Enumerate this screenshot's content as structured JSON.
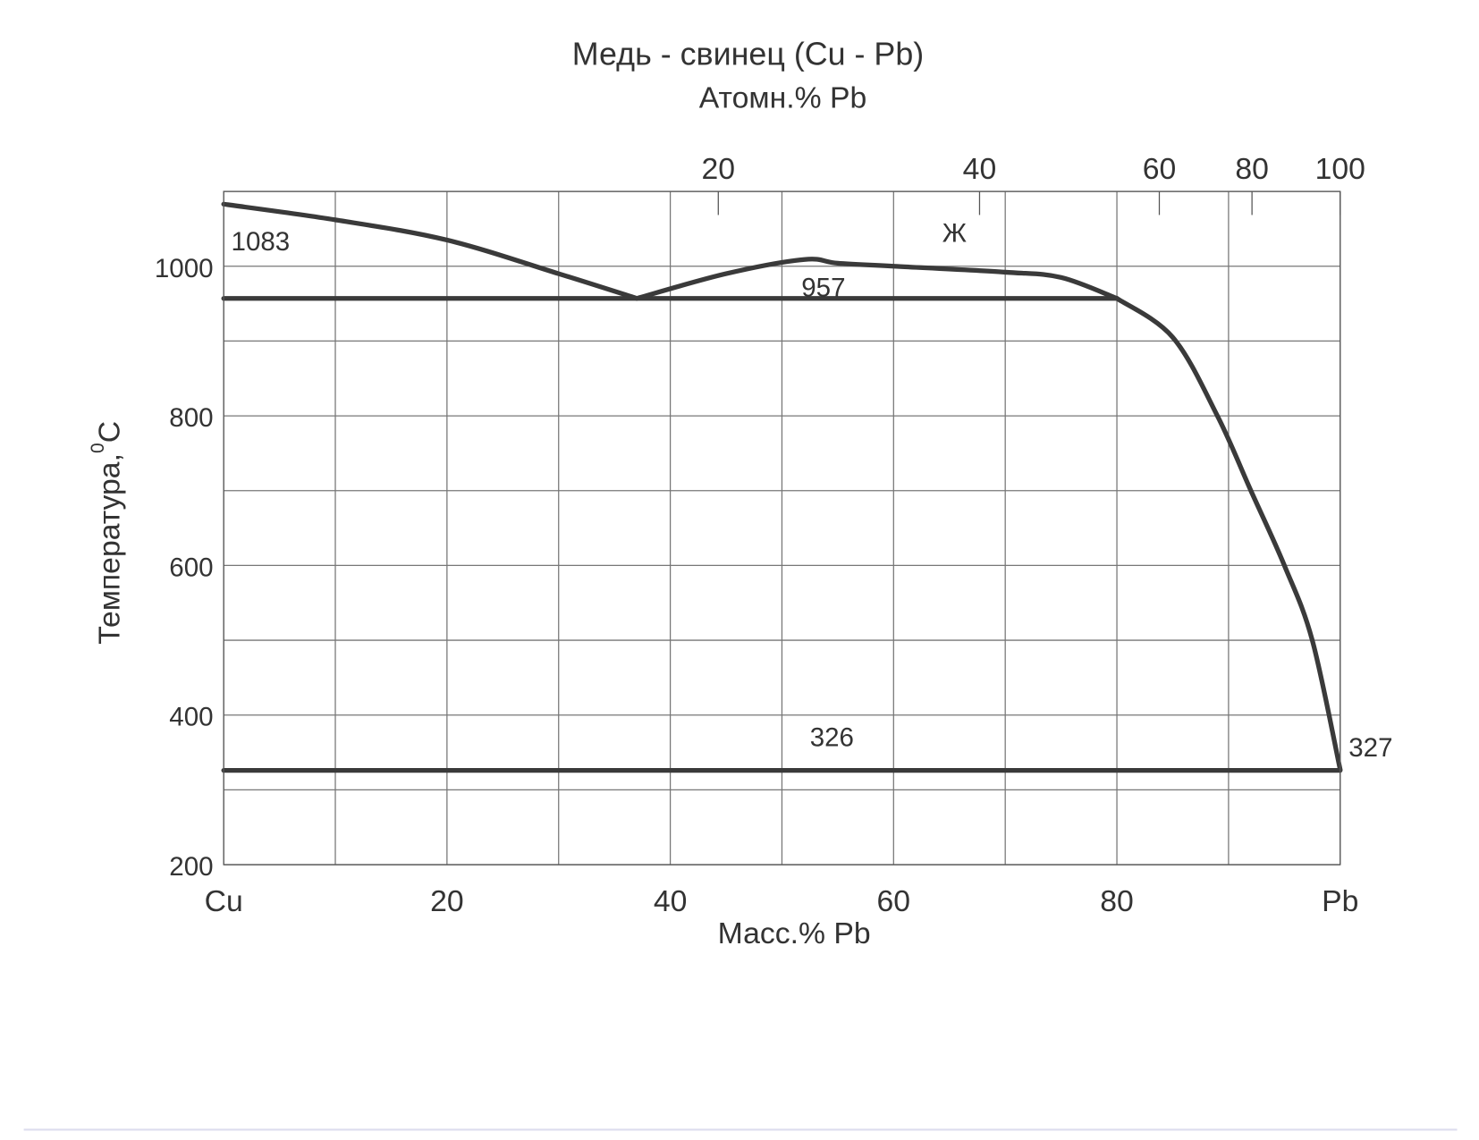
{
  "chart_data": {
    "type": "line",
    "title": "Медь - свинец (Cu - Pb)",
    "x2label": "Атомн.% Pb",
    "xlabel": "Масс.% Pb",
    "ylabel": {
      "text": "Температура,",
      "sup": "0",
      "unit": "C"
    },
    "xlim": [
      0,
      100
    ],
    "ylim": [
      200,
      1100
    ],
    "xticks": [
      {
        "value": 0,
        "label": "Cu"
      },
      20,
      40,
      60,
      80,
      {
        "value": 100,
        "label": "Pb"
      }
    ],
    "xminorticks": [
      10,
      30,
      50,
      70,
      90
    ],
    "yticks": [
      200,
      400,
      600,
      800,
      1000
    ],
    "yminorticks": [
      300,
      500,
      700,
      900,
      1100
    ],
    "x2ticks": [
      {
        "value": 44.3,
        "label": "20"
      },
      {
        "value": 67.7,
        "label": "40"
      },
      {
        "value": 83.8,
        "label": "60"
      },
      {
        "value": 92.1,
        "label": "80"
      },
      {
        "value": 100,
        "label": "100"
      }
    ],
    "grid": true,
    "series": [
      {
        "color": "#3a3a3a",
        "x": [
          0,
          10,
          20,
          30,
          37
        ],
        "values": [
          1083,
          1062,
          1035,
          990,
          957
        ]
      },
      {
        "color": "#3a3a3a",
        "x": [
          37,
          45,
          52,
          55,
          60,
          70,
          75,
          80
        ],
        "values": [
          957,
          990,
          1009,
          1004,
          1000,
          992,
          985,
          957
        ]
      },
      {
        "color": "#3a3a3a",
        "x": [
          80,
          85,
          89,
          92,
          95,
          97.5,
          100
        ],
        "values": [
          957,
          905,
          800,
          700,
          600,
          500,
          327
        ]
      },
      {
        "color": "#3a3a3a",
        "x": [
          0,
          80
        ],
        "values": [
          957,
          957
        ]
      },
      {
        "color": "#3a3a3a",
        "x": [
          0,
          100
        ],
        "values": [
          326,
          326
        ]
      }
    ],
    "annotations": [
      "1083",
      "957",
      "Ж",
      "326",
      "327"
    ]
  }
}
